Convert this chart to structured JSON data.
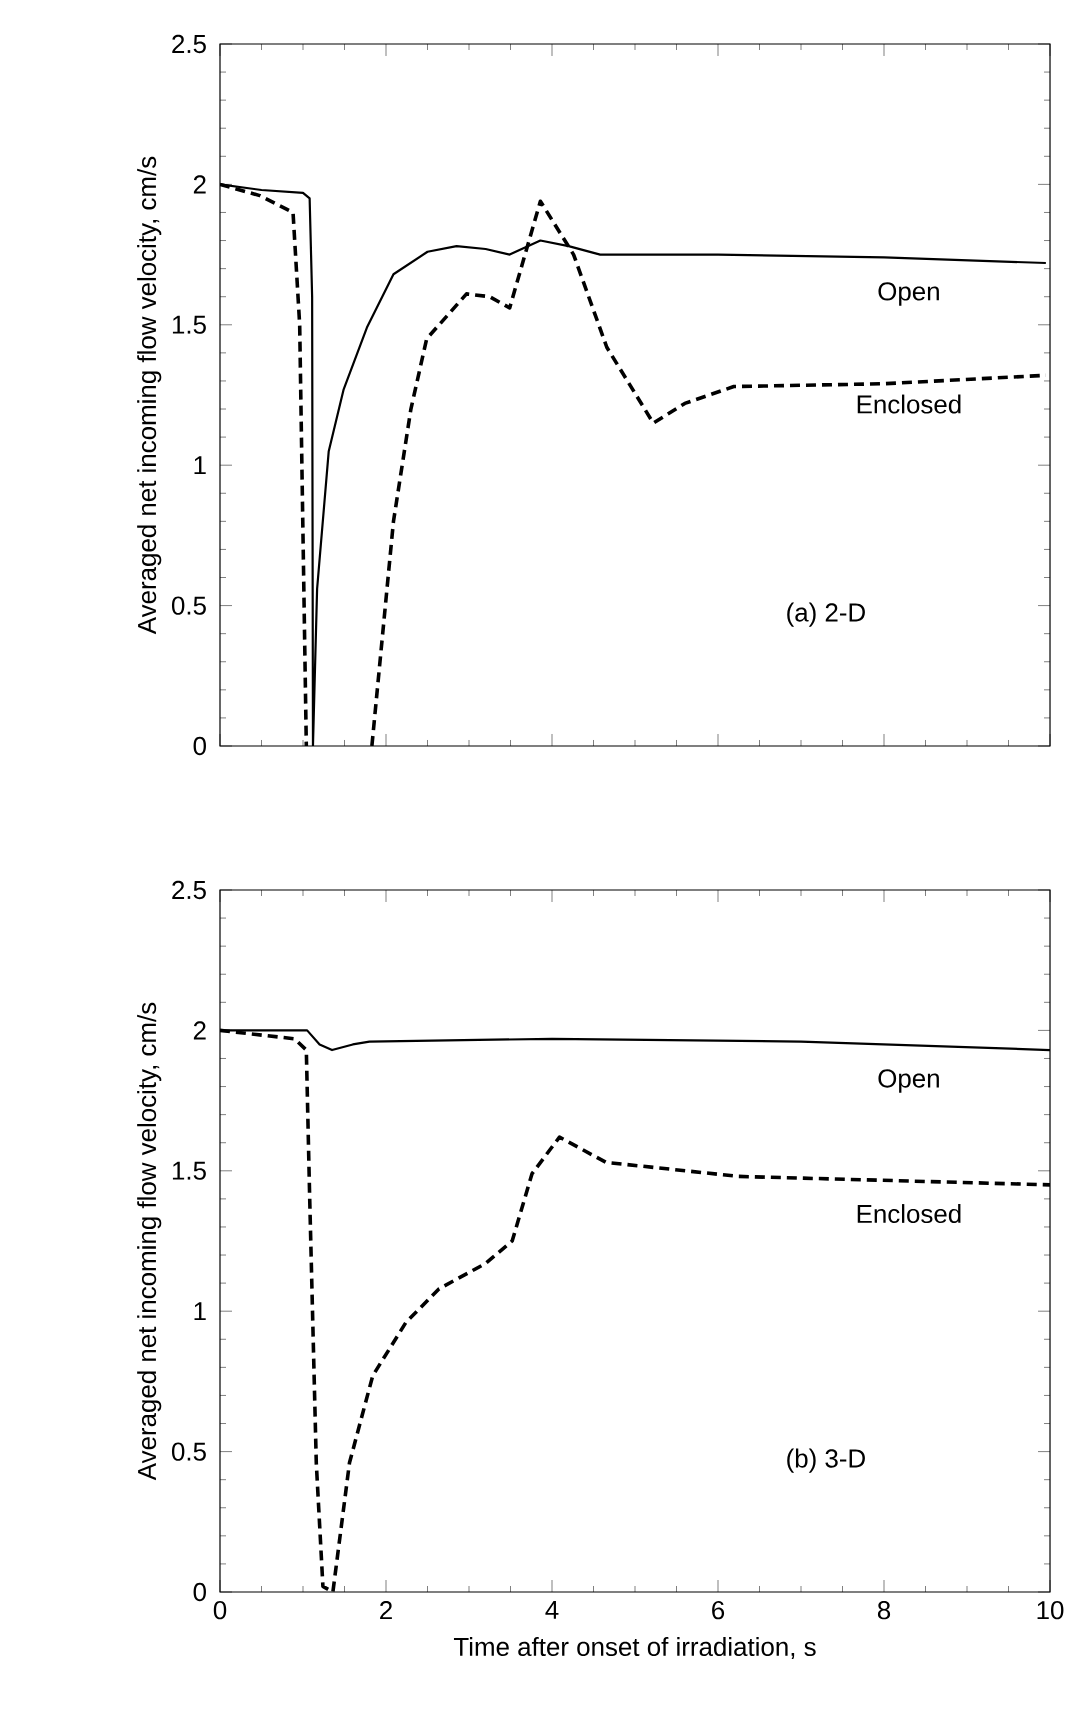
{
  "chart_data": [
    {
      "type": "line",
      "title": "(a) 2-D",
      "ylabel": "Averaged net incoming flow velocity, cm/s",
      "xlim": [
        0,
        10
      ],
      "ylim": [
        0,
        2.5
      ],
      "xticks": [
        0,
        2,
        4,
        6,
        8,
        10
      ],
      "yticks": [
        0,
        0.5,
        1,
        1.5,
        2,
        2.5
      ],
      "tick_labels": "y",
      "marker": "none",
      "series": [
        {
          "name": "Open",
          "color": "#000000",
          "line_style": "solid",
          "x": [
            0,
            0.5,
            1.0,
            1.08,
            1.11,
            1.12,
            1.17,
            1.31,
            1.49,
            1.77,
            2.09,
            2.5,
            2.85,
            3.2,
            3.49,
            3.86,
            4.2,
            4.58,
            6,
            8,
            9.95
          ],
          "values": [
            2.0,
            1.98,
            1.97,
            1.95,
            1.6,
            0,
            0.56,
            1.05,
            1.27,
            1.49,
            1.68,
            1.76,
            1.78,
            1.77,
            1.75,
            1.8,
            1.78,
            1.75,
            1.75,
            1.74,
            1.72
          ]
        },
        {
          "name": "Enclosed",
          "color": "#000000",
          "line_style": "dashed",
          "x": [
            0,
            0.48,
            0.88,
            0.96,
            1.04,
            1.4,
            1.83,
            2.09,
            2.3,
            2.49,
            2.97,
            3.25,
            3.49,
            3.86,
            4.26,
            4.66,
            5.22,
            5.6,
            6.19,
            8,
            9.95
          ],
          "values": [
            2.0,
            1.96,
            1.9,
            1.5,
            0,
            null,
            0,
            0.8,
            1.2,
            1.45,
            1.61,
            1.6,
            1.56,
            1.94,
            1.75,
            1.42,
            1.15,
            1.22,
            1.28,
            1.29,
            1.32
          ]
        }
      ]
    },
    {
      "type": "line",
      "title": "(b) 3-D",
      "xlabel": "Time after onset of irradiation, s",
      "ylabel": "Averaged net incoming flow velocity, cm/s",
      "xlim": [
        0,
        10
      ],
      "ylim": [
        0,
        2.5
      ],
      "xticks": [
        0,
        2,
        4,
        6,
        8,
        10
      ],
      "yticks": [
        0,
        0.5,
        1,
        1.5,
        2,
        2.5
      ],
      "marker": "none",
      "series": [
        {
          "name": "Open",
          "color": "#000000",
          "line_style": "solid",
          "x": [
            0,
            1.05,
            1.2,
            1.35,
            1.6,
            1.8,
            4,
            7,
            10
          ],
          "values": [
            2.0,
            2.0,
            1.95,
            1.93,
            1.95,
            1.96,
            1.97,
            1.96,
            1.93
          ]
        },
        {
          "name": "Enclosed",
          "color": "#000000",
          "line_style": "dashed",
          "x": [
            0,
            0.9,
            1.04,
            1.08,
            1.16,
            1.24,
            1.36,
            1.56,
            1.84,
            2.24,
            2.64,
            3.2,
            3.52,
            3.76,
            4.09,
            4.65,
            6.25,
            10
          ],
          "values": [
            2.0,
            1.97,
            1.93,
            1.41,
            0.46,
            0.02,
            0,
            0.46,
            0.77,
            0.96,
            1.08,
            1.17,
            1.25,
            1.49,
            1.62,
            1.53,
            1.48,
            1.45
          ]
        }
      ]
    }
  ]
}
